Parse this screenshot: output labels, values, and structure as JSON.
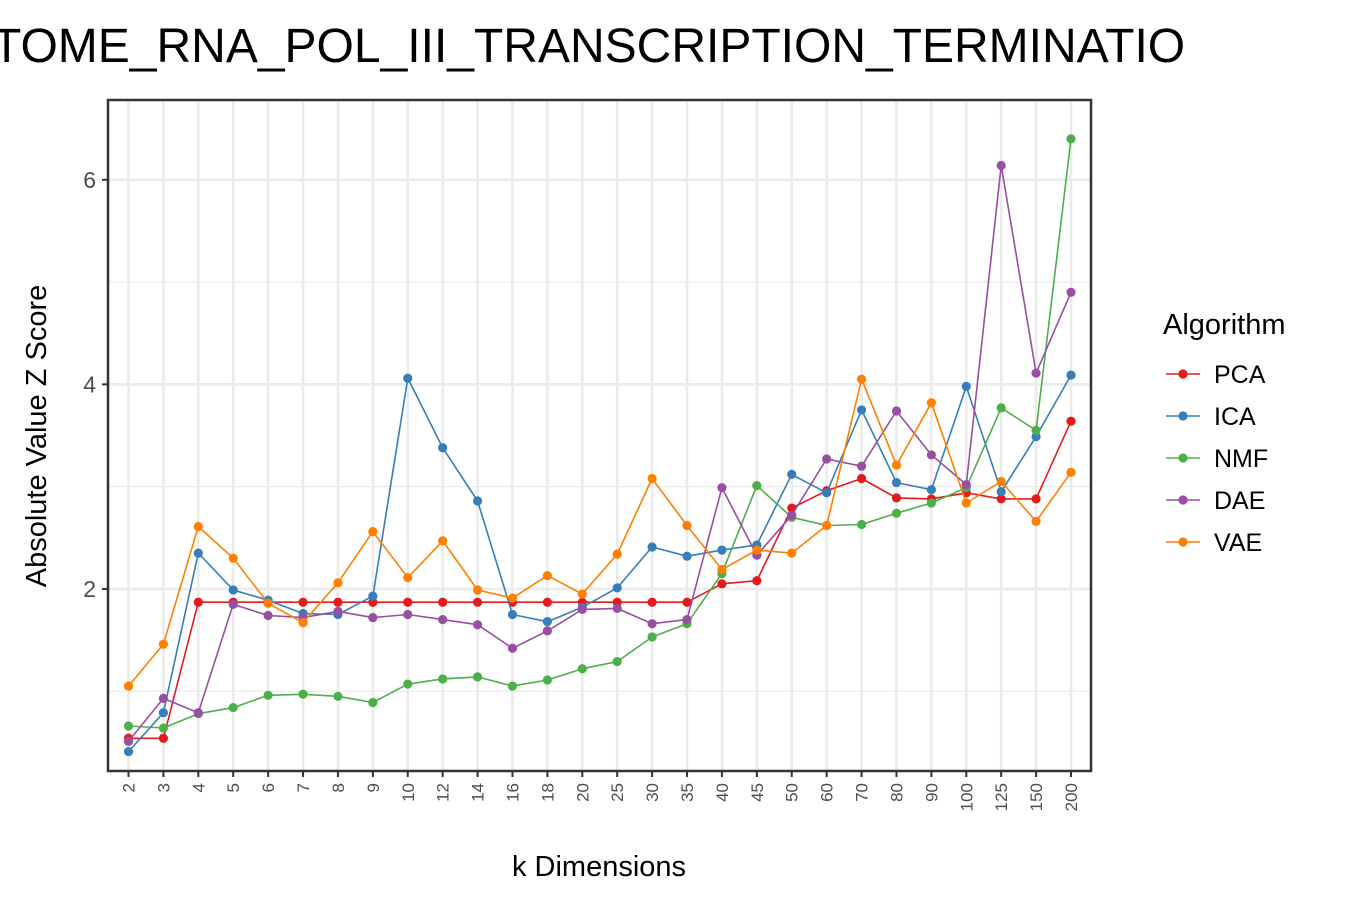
{
  "chart_data": {
    "type": "line",
    "title": "TOME_RNA_POL_III_TRANSCRIPTION_TERMINATIO",
    "xlabel": "k Dimensions",
    "ylabel": "Absolute Value Z Score",
    "categories": [
      "2",
      "3",
      "4",
      "5",
      "6",
      "7",
      "8",
      "9",
      "10",
      "12",
      "14",
      "16",
      "18",
      "20",
      "25",
      "30",
      "35",
      "40",
      "45",
      "50",
      "60",
      "70",
      "80",
      "90",
      "100",
      "125",
      "150",
      "200"
    ],
    "yticks": [
      "2",
      "4",
      "6"
    ],
    "ylim": [
      0.22,
      6.78
    ],
    "grid": true,
    "legend": {
      "title": "Algorithm",
      "placement": "right"
    },
    "series": [
      {
        "name": "PCA",
        "color": "#e41a1c",
        "values": [
          0.54,
          0.54,
          1.87,
          1.87,
          1.87,
          1.87,
          1.87,
          1.87,
          1.87,
          1.87,
          1.87,
          1.87,
          1.87,
          1.87,
          1.87,
          1.87,
          1.87,
          2.05,
          2.08,
          2.79,
          2.96,
          3.08,
          2.89,
          2.88,
          2.94,
          2.88,
          2.88,
          3.64
        ]
      },
      {
        "name": "ICA",
        "color": "#377eb8",
        "values": [
          0.41,
          0.79,
          2.35,
          1.99,
          1.89,
          1.76,
          1.75,
          1.93,
          4.06,
          3.38,
          2.86,
          1.75,
          1.68,
          1.82,
          2.01,
          2.41,
          2.32,
          2.38,
          2.43,
          3.12,
          2.94,
          3.75,
          3.04,
          2.97,
          3.98,
          2.95,
          3.49,
          4.09
        ]
      },
      {
        "name": "NMF",
        "color": "#4daf4a",
        "values": [
          0.66,
          0.64,
          0.78,
          0.84,
          0.96,
          0.97,
          0.95,
          0.89,
          1.07,
          1.12,
          1.14,
          1.05,
          1.11,
          1.22,
          1.29,
          1.53,
          1.66,
          2.15,
          3.01,
          2.7,
          2.62,
          2.63,
          2.74,
          2.84,
          2.99,
          3.77,
          3.55,
          6.4
        ]
      },
      {
        "name": "DAE",
        "color": "#984ea3",
        "values": [
          0.51,
          0.93,
          0.79,
          1.85,
          1.74,
          1.72,
          1.78,
          1.72,
          1.75,
          1.7,
          1.65,
          1.42,
          1.59,
          1.8,
          1.81,
          1.66,
          1.7,
          2.99,
          2.33,
          2.72,
          3.27,
          3.2,
          3.74,
          3.31,
          3.02,
          6.14,
          4.11,
          4.9
        ]
      },
      {
        "name": "VAE",
        "color": "#ff7f00",
        "values": [
          1.05,
          1.46,
          2.61,
          2.3,
          1.86,
          1.67,
          2.06,
          2.56,
          2.11,
          2.47,
          1.99,
          1.91,
          2.13,
          1.95,
          2.34,
          3.08,
          2.62,
          2.19,
          2.38,
          2.35,
          2.62,
          4.05,
          3.21,
          3.82,
          2.84,
          3.05,
          2.66,
          3.14
        ]
      }
    ]
  }
}
